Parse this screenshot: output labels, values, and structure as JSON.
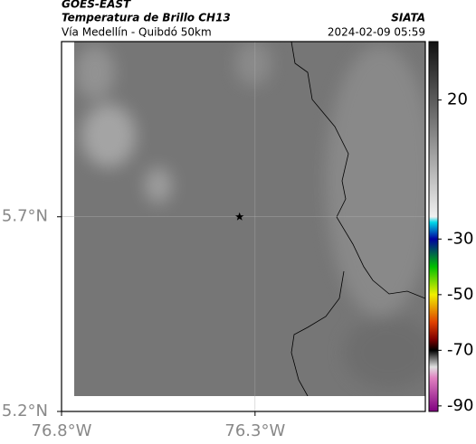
{
  "chart_data": {
    "type": "map",
    "title": "GOES-EAST",
    "subtitle": "Temperatura de Brillo CH13",
    "region": "Vía Medellín - Quibdó 50km",
    "source": "SIATA",
    "timestamp": "2024-02-09 05:59",
    "xlim": [
      -76.8,
      -75.86
    ],
    "ylim": [
      5.2,
      6.15
    ],
    "xticks": [
      {
        "value": -76.8,
        "label": "76.8°W"
      },
      {
        "value": -76.3,
        "label": "76.3°W"
      }
    ],
    "yticks": [
      {
        "value": 5.2,
        "label": "5.2°N"
      },
      {
        "value": 5.7,
        "label": "5.7°N"
      }
    ],
    "grid": true,
    "marker": {
      "lon": -76.34,
      "lat": 5.7
    },
    "clim": [
      -92,
      41
    ],
    "cticks": [
      20,
      -30,
      -50,
      -70,
      -90
    ],
    "colormap": [
      [
        41,
        "#111111"
      ],
      [
        -22,
        "#f0f0f0"
      ],
      [
        -24,
        "#00d8e8"
      ],
      [
        -30,
        "#0000a0"
      ],
      [
        -40,
        "#00c000"
      ],
      [
        -50,
        "#f0f000"
      ],
      [
        -60,
        "#e04000"
      ],
      [
        -66,
        "#800000"
      ],
      [
        -70,
        "#000000"
      ],
      [
        -76,
        "#e0e0e0"
      ],
      [
        -80,
        "#e080c0"
      ],
      [
        -92,
        "#800080"
      ]
    ]
  }
}
